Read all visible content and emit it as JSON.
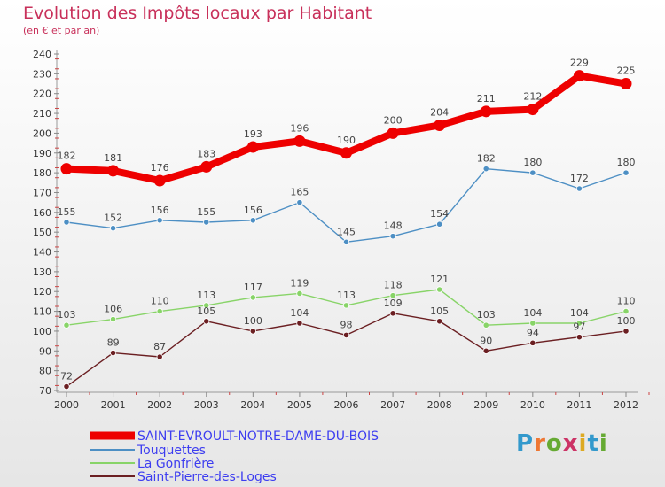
{
  "title": "Evolution des Impôts locaux par Habitant",
  "subtitle": "(en € et par an)",
  "logo": {
    "text": "Proxiti",
    "colors": [
      "#3399cc",
      "#ee7733",
      "#66aa33",
      "#cc3366",
      "#ddaa22",
      "#3399cc",
      "#66aa33"
    ]
  },
  "chart_data": {
    "type": "line",
    "title": "Evolution des Impôts locaux par Habitant",
    "subtitle": "(en € et par an)",
    "x": [
      "2000",
      "2001",
      "2002",
      "2003",
      "2004",
      "2005",
      "2006",
      "2007",
      "2008",
      "2009",
      "2010",
      "2011",
      "2012"
    ],
    "ylim": [
      70,
      240
    ],
    "yticks": [
      70,
      80,
      90,
      100,
      110,
      120,
      130,
      140,
      150,
      160,
      170,
      180,
      190,
      200,
      210,
      220,
      230,
      240
    ],
    "grid": false,
    "legend_position": "bottom",
    "series": [
      {
        "name": "SAINT-EVROULT-NOTRE-DAME-DU-BOIS",
        "color": "#ee0000",
        "values": [
          182,
          181,
          176,
          183,
          193,
          196,
          190,
          200,
          204,
          211,
          212,
          229,
          225
        ]
      },
      {
        "name": "Touquettes",
        "color": "#4d8fc4",
        "values": [
          155,
          152,
          156,
          155,
          156,
          165,
          145,
          148,
          154,
          182,
          180,
          172,
          180
        ]
      },
      {
        "name": "La Gonfrière",
        "color": "#88d468",
        "values": [
          103,
          106,
          110,
          113,
          117,
          119,
          113,
          118,
          121,
          103,
          104,
          104,
          110
        ]
      },
      {
        "name": "Saint-Pierre-des-Loges",
        "color": "#6b1f22",
        "values": [
          72,
          89,
          87,
          105,
          100,
          104,
          98,
          109,
          105,
          90,
          94,
          97,
          100
        ]
      }
    ]
  }
}
